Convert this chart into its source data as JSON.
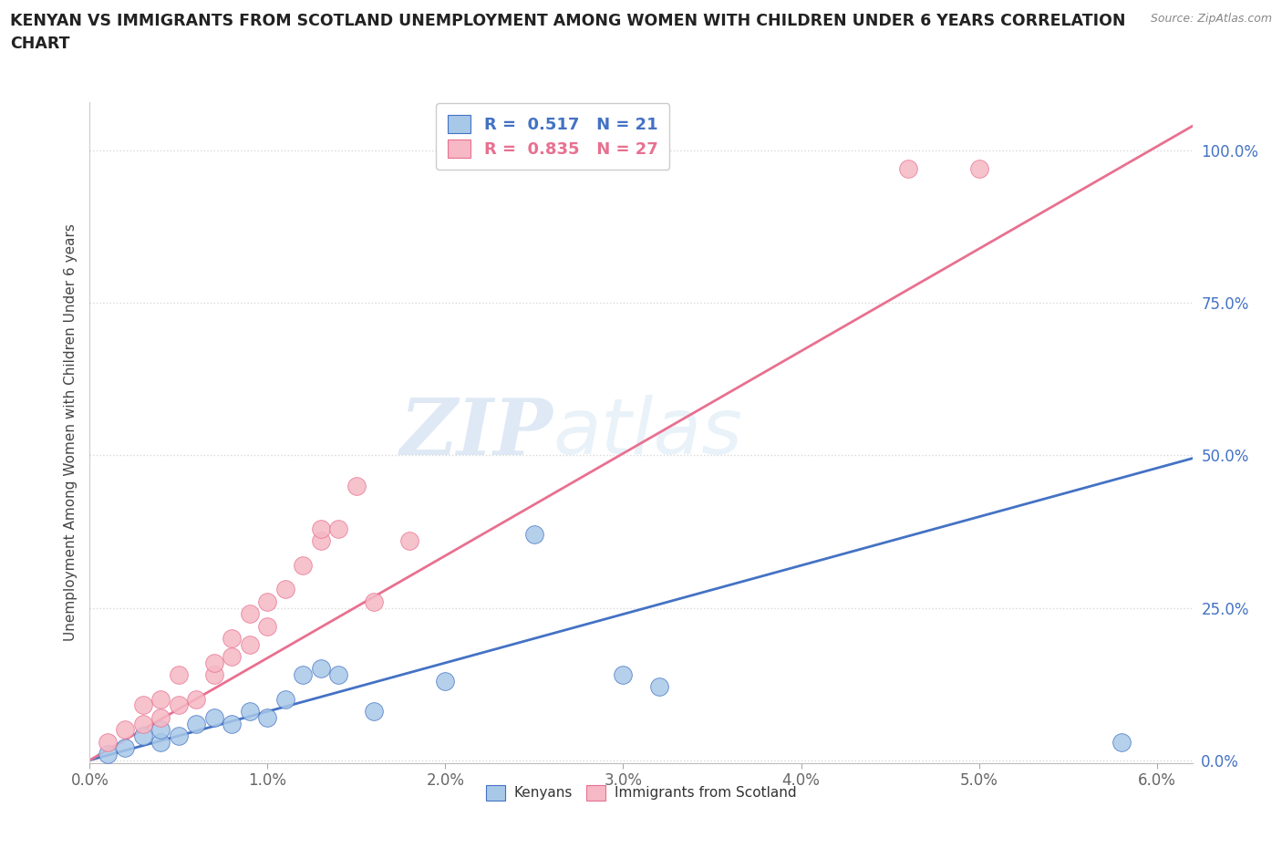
{
  "title_line1": "KENYAN VS IMMIGRANTS FROM SCOTLAND UNEMPLOYMENT AMONG WOMEN WITH CHILDREN UNDER 6 YEARS CORRELATION",
  "title_line2": "CHART",
  "source": "Source: ZipAtlas.com",
  "ylabel": "Unemployment Among Women with Children Under 6 years",
  "xlim": [
    0.0,
    0.062
  ],
  "ylim": [
    -0.005,
    1.08
  ],
  "xticks": [
    0.0,
    0.01,
    0.02,
    0.03,
    0.04,
    0.05,
    0.06
  ],
  "yticks": [
    0.0,
    0.25,
    0.5,
    0.75,
    1.0
  ],
  "xtick_labels": [
    "0.0%",
    "1.0%",
    "2.0%",
    "3.0%",
    "4.0%",
    "5.0%",
    "6.0%"
  ],
  "ytick_labels": [
    "0.0%",
    "25.0%",
    "50.0%",
    "75.0%",
    "100.0%"
  ],
  "kenyan_color": "#a8c8e8",
  "scotland_color": "#f5b8c4",
  "kenyan_R": 0.517,
  "kenyan_N": 21,
  "scotland_R": 0.835,
  "scotland_N": 27,
  "kenyan_line_color": "#4472c4",
  "scotland_line_color": "#e87090",
  "legend_label_kenyan": "Kenyans",
  "legend_label_scotland": "Immigrants from Scotland",
  "watermark_zip": "ZIP",
  "watermark_atlas": "atlas",
  "kenyan_x": [
    0.001,
    0.002,
    0.003,
    0.004,
    0.004,
    0.005,
    0.006,
    0.007,
    0.008,
    0.009,
    0.01,
    0.011,
    0.012,
    0.013,
    0.014,
    0.016,
    0.02,
    0.025,
    0.03,
    0.058,
    0.032
  ],
  "kenyan_y": [
    0.01,
    0.02,
    0.04,
    0.03,
    0.05,
    0.04,
    0.06,
    0.07,
    0.06,
    0.08,
    0.07,
    0.1,
    0.14,
    0.15,
    0.14,
    0.08,
    0.13,
    0.37,
    0.14,
    0.03,
    0.12
  ],
  "scotland_x": [
    0.001,
    0.002,
    0.003,
    0.003,
    0.004,
    0.004,
    0.005,
    0.005,
    0.006,
    0.007,
    0.007,
    0.008,
    0.008,
    0.009,
    0.009,
    0.01,
    0.01,
    0.011,
    0.012,
    0.013,
    0.013,
    0.014,
    0.015,
    0.016,
    0.018,
    0.046,
    0.05
  ],
  "scotland_y": [
    0.03,
    0.05,
    0.06,
    0.09,
    0.07,
    0.1,
    0.09,
    0.14,
    0.1,
    0.14,
    0.16,
    0.17,
    0.2,
    0.19,
    0.24,
    0.22,
    0.26,
    0.28,
    0.32,
    0.36,
    0.38,
    0.38,
    0.45,
    0.26,
    0.36,
    0.97,
    0.97
  ],
  "kenyan_line_x": [
    0.0,
    0.062
  ],
  "kenyan_line_y": [
    0.0,
    0.495
  ],
  "scotland_line_x": [
    0.0,
    0.062
  ],
  "scotland_line_y": [
    0.0,
    1.04
  ],
  "background_color": "#ffffff",
  "grid_color": "#d0d0d0"
}
